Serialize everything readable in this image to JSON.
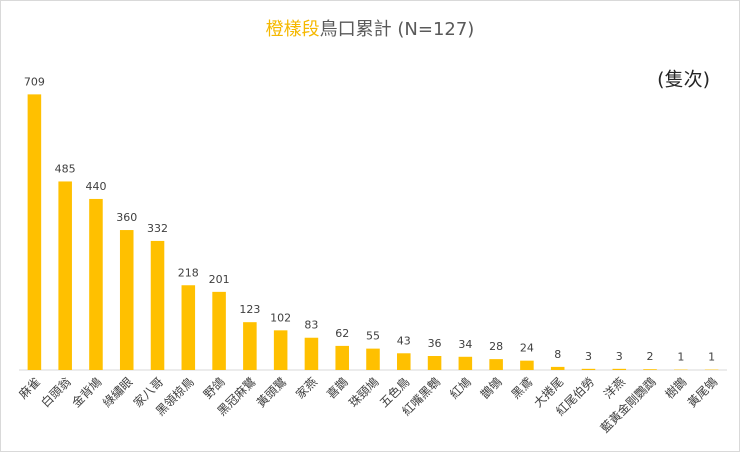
{
  "chart_data": {
    "type": "bar",
    "title": {
      "highlight": "橙樣段",
      "rest": "鳥口累計 (N=127)"
    },
    "title_highlight_color": "#f5b800",
    "annotation": "(隻次)",
    "categories": [
      "麻雀",
      "白頭翁",
      "金背鳩",
      "綠繡眼",
      "家八哥",
      "黑領椋鳥",
      "野鴿",
      "黑冠麻鷺",
      "黃頭鷺",
      "家燕",
      "喜鵲",
      "珠頸鳩",
      "五色鳥",
      "紅嘴黑鵯",
      "紅鳩",
      "鵲鴝",
      "黑鳶",
      "大捲尾",
      "紅尾伯勞",
      "洋燕",
      "藍黃金剛鸚鵡",
      "樹鵲",
      "黃尾鴝"
    ],
    "values": [
      709,
      485,
      440,
      360,
      332,
      218,
      201,
      123,
      102,
      83,
      62,
      55,
      43,
      36,
      34,
      28,
      24,
      8,
      3,
      3,
      2,
      1,
      1
    ],
    "color": "#ffc000",
    "ylim": [
      0,
      800
    ]
  }
}
